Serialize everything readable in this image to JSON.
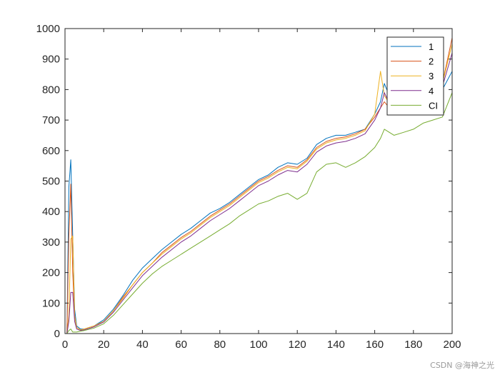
{
  "chart_data": {
    "type": "line",
    "title": "",
    "xlabel": "",
    "ylabel": "",
    "xlim": [
      0,
      200
    ],
    "ylim": [
      0,
      1000
    ],
    "xticks": [
      0,
      20,
      40,
      60,
      80,
      100,
      120,
      140,
      160,
      180,
      200
    ],
    "yticks": [
      0,
      100,
      200,
      300,
      400,
      500,
      600,
      700,
      800,
      900,
      1000
    ],
    "grid": false,
    "legend_position": "top-right",
    "x": [
      1,
      2,
      3,
      4,
      5,
      6,
      8,
      10,
      15,
      20,
      25,
      30,
      35,
      40,
      45,
      50,
      55,
      60,
      65,
      70,
      75,
      80,
      85,
      90,
      95,
      100,
      105,
      110,
      115,
      120,
      125,
      130,
      135,
      140,
      145,
      150,
      155,
      160,
      163,
      165,
      170,
      175,
      180,
      185,
      190,
      195,
      200
    ],
    "series": [
      {
        "name": "1",
        "color": "#0072BD",
        "values": [
          0,
          480,
          570,
          320,
          80,
          25,
          15,
          15,
          25,
          45,
          80,
          125,
          175,
          215,
          245,
          275,
          300,
          325,
          345,
          370,
          395,
          410,
          430,
          455,
          480,
          505,
          520,
          545,
          560,
          555,
          575,
          620,
          640,
          650,
          650,
          660,
          670,
          720,
          760,
          820,
          740,
          760,
          770,
          790,
          810,
          800,
          860
        ]
      },
      {
        "name": "2",
        "color": "#D95319",
        "values": [
          0,
          320,
          490,
          200,
          60,
          20,
          12,
          15,
          25,
          40,
          75,
          120,
          160,
          200,
          230,
          265,
          290,
          315,
          335,
          360,
          385,
          405,
          425,
          450,
          475,
          500,
          515,
          535,
          550,
          545,
          570,
          610,
          630,
          640,
          645,
          655,
          670,
          710,
          740,
          760,
          720,
          750,
          760,
          780,
          800,
          820,
          970
        ]
      },
      {
        "name": "3",
        "color": "#EDB120",
        "values": [
          0,
          60,
          310,
          320,
          60,
          20,
          12,
          15,
          25,
          40,
          75,
          115,
          160,
          200,
          230,
          260,
          285,
          310,
          330,
          355,
          380,
          400,
          420,
          445,
          470,
          495,
          510,
          530,
          545,
          540,
          565,
          605,
          625,
          635,
          640,
          650,
          665,
          720,
          860,
          780,
          730,
          750,
          760,
          780,
          800,
          820,
          950
        ]
      },
      {
        "name": "4",
        "color": "#7E2F8E",
        "values": [
          0,
          40,
          135,
          135,
          40,
          15,
          10,
          12,
          22,
          38,
          70,
          110,
          150,
          190,
          220,
          250,
          275,
          300,
          320,
          345,
          370,
          390,
          410,
          435,
          460,
          485,
          500,
          520,
          535,
          530,
          555,
          595,
          615,
          625,
          630,
          640,
          655,
          700,
          740,
          790,
          720,
          740,
          750,
          770,
          790,
          810,
          920
        ]
      },
      {
        "name": "CI",
        "color": "#77AC30",
        "values": [
          0,
          10,
          15,
          5,
          5,
          5,
          8,
          10,
          18,
          32,
          60,
          95,
          130,
          165,
          195,
          220,
          240,
          260,
          280,
          300,
          320,
          340,
          360,
          385,
          405,
          425,
          435,
          450,
          460,
          440,
          460,
          530,
          555,
          560,
          545,
          560,
          580,
          610,
          640,
          670,
          650,
          660,
          670,
          690,
          700,
          710,
          790
        ]
      }
    ]
  },
  "watermark": "CSDN @海神之光"
}
